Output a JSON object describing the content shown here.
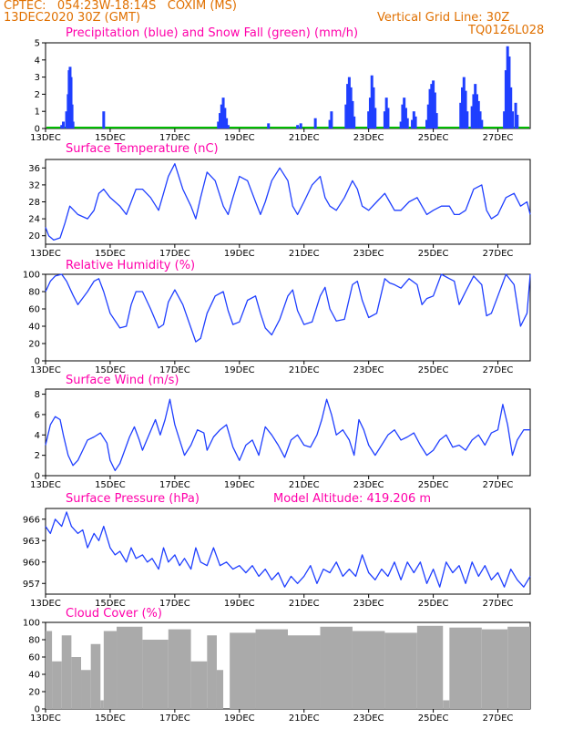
{
  "header": {
    "left1": "CPTEC:   054:23W-18:14S   COXIM (MS)",
    "left2": "13DEC2020 30Z (GMT)",
    "right1": "Vertical Grid Line: 30Z",
    "right2": "TQ0126L028"
  },
  "colors": {
    "title": "#ff00aa",
    "header": "#e07000",
    "line": "#1f3fff",
    "precip": "#1f3fff",
    "snow": "#00bb00",
    "cloud": "#aaaaaa"
  },
  "x_axis": {
    "start": "13DEC 00Z",
    "end": "28DEC 00Z",
    "unit": "days since 13DEC",
    "tick_labels": [
      "13DEC",
      "15DEC",
      "17DEC",
      "19DEC",
      "21DEC",
      "23DEC",
      "25DEC",
      "27DEC"
    ],
    "tick_positions": [
      0,
      2,
      4,
      6,
      8,
      10,
      12,
      14
    ]
  },
  "chart_data": [
    {
      "id": "precip",
      "type": "bar",
      "title": "Precipitation (blue) and Snow Fall (green) (mm/h)",
      "ylim": [
        0,
        5
      ],
      "yticks": [
        0,
        1,
        2,
        3,
        4,
        5
      ],
      "series": [
        {
          "name": "Precipitation",
          "points": [
            [
              0.5,
              0.2
            ],
            [
              0.55,
              0.4
            ],
            [
              0.65,
              1.0
            ],
            [
              0.7,
              2.0
            ],
            [
              0.73,
              3.4
            ],
            [
              0.76,
              3.6
            ],
            [
              0.79,
              3.0
            ],
            [
              0.82,
              1.4
            ],
            [
              0.85,
              0.4
            ],
            [
              1.8,
              1.0
            ],
            [
              5.35,
              0.4
            ],
            [
              5.4,
              0.9
            ],
            [
              5.45,
              1.4
            ],
            [
              5.5,
              1.8
            ],
            [
              5.55,
              1.2
            ],
            [
              5.6,
              0.6
            ],
            [
              5.65,
              0.2
            ],
            [
              6.9,
              0.3
            ],
            [
              7.8,
              0.2
            ],
            [
              7.9,
              0.3
            ],
            [
              8.35,
              0.6
            ],
            [
              8.8,
              0.5
            ],
            [
              8.85,
              1.0
            ],
            [
              9.3,
              1.4
            ],
            [
              9.35,
              2.6
            ],
            [
              9.4,
              3.0
            ],
            [
              9.45,
              2.4
            ],
            [
              9.5,
              1.6
            ],
            [
              9.55,
              0.7
            ],
            [
              10.0,
              1.0
            ],
            [
              10.05,
              1.8
            ],
            [
              10.1,
              3.1
            ],
            [
              10.15,
              2.4
            ],
            [
              10.2,
              1.2
            ],
            [
              10.5,
              1.0
            ],
            [
              10.55,
              1.8
            ],
            [
              10.6,
              1.2
            ],
            [
              11.0,
              0.4
            ],
            [
              11.05,
              1.4
            ],
            [
              11.1,
              1.8
            ],
            [
              11.15,
              1.2
            ],
            [
              11.2,
              0.6
            ],
            [
              11.35,
              0.5
            ],
            [
              11.4,
              1.0
            ],
            [
              11.45,
              0.7
            ],
            [
              11.8,
              0.5
            ],
            [
              11.85,
              1.4
            ],
            [
              11.9,
              2.3
            ],
            [
              11.95,
              2.6
            ],
            [
              12.0,
              2.8
            ],
            [
              12.05,
              2.1
            ],
            [
              12.1,
              0.9
            ],
            [
              12.85,
              1.5
            ],
            [
              12.9,
              2.4
            ],
            [
              12.95,
              3.0
            ],
            [
              13.0,
              2.2
            ],
            [
              13.05,
              1.0
            ],
            [
              13.2,
              1.3
            ],
            [
              13.25,
              2.0
            ],
            [
              13.3,
              2.6
            ],
            [
              13.35,
              2.0
            ],
            [
              13.4,
              1.6
            ],
            [
              13.45,
              1.0
            ],
            [
              13.5,
              0.5
            ],
            [
              14.2,
              1.0
            ],
            [
              14.25,
              3.4
            ],
            [
              14.3,
              4.8
            ],
            [
              14.35,
              4.2
            ],
            [
              14.4,
              2.4
            ],
            [
              14.45,
              1.0
            ],
            [
              14.55,
              1.5
            ],
            [
              14.6,
              0.8
            ]
          ]
        },
        {
          "name": "Snow Fall",
          "points": []
        }
      ]
    },
    {
      "id": "temp",
      "type": "line",
      "title": "Surface Temperature (nC)",
      "ylim": [
        18,
        38
      ],
      "yticks": [
        20,
        24,
        28,
        32,
        36
      ],
      "x": [
        0,
        0.1,
        0.25,
        0.45,
        0.6,
        0.75,
        1.0,
        1.3,
        1.5,
        1.65,
        1.8,
        2.0,
        2.3,
        2.5,
        2.65,
        2.8,
        3.0,
        3.25,
        3.5,
        3.65,
        3.8,
        4.0,
        4.25,
        4.5,
        4.65,
        4.8,
        5.0,
        5.25,
        5.5,
        5.65,
        5.8,
        6.0,
        6.25,
        6.5,
        6.65,
        6.8,
        7.0,
        7.25,
        7.5,
        7.65,
        7.8,
        8.0,
        8.25,
        8.5,
        8.65,
        8.8,
        9.0,
        9.25,
        9.5,
        9.65,
        9.8,
        10.0,
        10.25,
        10.5,
        10.65,
        10.8,
        11.0,
        11.25,
        11.5,
        11.65,
        11.8,
        12.0,
        12.25,
        12.5,
        12.65,
        12.8,
        13.0,
        13.25,
        13.5,
        13.65,
        13.8,
        14.0,
        14.25,
        14.5,
        14.7,
        14.9,
        15.0
      ],
      "y": [
        22,
        20,
        19,
        19.5,
        23,
        27,
        25,
        24,
        26,
        30,
        31,
        29,
        27,
        25,
        28,
        31,
        31,
        29,
        26,
        30,
        34,
        37,
        31,
        27,
        24,
        29,
        35,
        33,
        27,
        25,
        29,
        34,
        33,
        28,
        25,
        28,
        33,
        36,
        33,
        27,
        25,
        28,
        32,
        34,
        29,
        27,
        26,
        29,
        33,
        31,
        27,
        26,
        28,
        30,
        28,
        26,
        26,
        28,
        29,
        27,
        25,
        26,
        27,
        27,
        25,
        25,
        26,
        31,
        32,
        26,
        24,
        25,
        29,
        30,
        27,
        28,
        25
      ]
    },
    {
      "id": "rh",
      "type": "line",
      "title": "Relative Humidity (%)",
      "ylim": [
        0,
        100
      ],
      "yticks": [
        0,
        20,
        40,
        60,
        80,
        100
      ],
      "x": [
        0,
        0.15,
        0.3,
        0.5,
        0.65,
        0.85,
        1.0,
        1.3,
        1.5,
        1.65,
        1.8,
        2.0,
        2.3,
        2.5,
        2.65,
        2.8,
        3.0,
        3.25,
        3.5,
        3.65,
        3.8,
        4.0,
        4.25,
        4.5,
        4.65,
        4.8,
        5.0,
        5.25,
        5.5,
        5.65,
        5.8,
        6.0,
        6.25,
        6.5,
        6.65,
        6.8,
        7.0,
        7.25,
        7.5,
        7.65,
        7.8,
        8.0,
        8.25,
        8.5,
        8.65,
        8.8,
        9.0,
        9.25,
        9.5,
        9.65,
        9.8,
        10.0,
        10.25,
        10.5,
        10.65,
        10.8,
        11.0,
        11.25,
        11.5,
        11.65,
        11.8,
        12.0,
        12.25,
        12.5,
        12.65,
        12.8,
        13.0,
        13.25,
        13.5,
        13.65,
        13.8,
        14.0,
        14.25,
        14.5,
        14.7,
        14.9,
        15.0
      ],
      "y": [
        80,
        92,
        98,
        100,
        92,
        76,
        65,
        80,
        92,
        95,
        80,
        55,
        38,
        40,
        65,
        80,
        80,
        60,
        38,
        42,
        68,
        82,
        65,
        38,
        22,
        26,
        55,
        75,
        80,
        58,
        42,
        45,
        70,
        75,
        55,
        38,
        30,
        48,
        75,
        82,
        58,
        42,
        45,
        75,
        85,
        60,
        46,
        48,
        88,
        92,
        70,
        50,
        55,
        95,
        90,
        88,
        84,
        95,
        88,
        65,
        72,
        75,
        100,
        95,
        92,
        65,
        80,
        98,
        88,
        52,
        55,
        75,
        100,
        88,
        40,
        55,
        100
      ]
    },
    {
      "id": "wind",
      "type": "line",
      "title": "Surface Wind (m/s)",
      "ylim": [
        0,
        8.5
      ],
      "yticks": [
        0,
        2,
        4,
        6,
        8
      ],
      "x": [
        0,
        0.15,
        0.3,
        0.45,
        0.55,
        0.7,
        0.85,
        1.0,
        1.15,
        1.3,
        1.5,
        1.7,
        1.9,
        2.0,
        2.15,
        2.3,
        2.45,
        2.6,
        2.75,
        2.9,
        3.0,
        3.2,
        3.4,
        3.55,
        3.7,
        3.85,
        4.0,
        4.15,
        4.3,
        4.5,
        4.7,
        4.9,
        5.0,
        5.2,
        5.4,
        5.6,
        5.8,
        6.0,
        6.2,
        6.4,
        6.6,
        6.8,
        7.0,
        7.2,
        7.4,
        7.6,
        7.8,
        8.0,
        8.2,
        8.4,
        8.55,
        8.7,
        8.85,
        9.0,
        9.2,
        9.4,
        9.55,
        9.7,
        9.85,
        10.0,
        10.2,
        10.4,
        10.6,
        10.8,
        11.0,
        11.2,
        11.4,
        11.6,
        11.8,
        12.0,
        12.2,
        12.4,
        12.6,
        12.8,
        13.0,
        13.2,
        13.4,
        13.6,
        13.8,
        14.0,
        14.15,
        14.3,
        14.45,
        14.6,
        14.8,
        15.0
      ],
      "y": [
        3,
        5,
        5.8,
        5.5,
        4,
        2,
        1,
        1.5,
        2.5,
        3.5,
        3.8,
        4.2,
        3.2,
        1.5,
        0.5,
        1.2,
        2.5,
        3.8,
        4.8,
        3.5,
        2.5,
        4,
        5.5,
        4,
        5.5,
        7.5,
        5,
        3.5,
        2,
        3,
        4.5,
        4.2,
        2.5,
        3.8,
        4.5,
        5,
        2.8,
        1.5,
        3,
        3.5,
        2,
        4.8,
        4,
        3,
        1.8,
        3.5,
        4,
        3,
        2.8,
        4,
        5.5,
        7.5,
        6,
        4,
        4.5,
        3.5,
        2,
        5.5,
        4.5,
        3,
        2,
        3,
        4,
        4.5,
        3.5,
        3.8,
        4.2,
        3,
        2,
        2.5,
        3.5,
        4,
        2.8,
        3,
        2.5,
        3.5,
        4,
        3,
        4.2,
        4.5,
        7,
        5,
        2,
        3.5,
        4.5,
        4.5
      ]
    },
    {
      "id": "pressure",
      "type": "line",
      "title": "Surface Pressure (hPa)",
      "ylim": [
        955.5,
        967.5
      ],
      "yticks": [
        957,
        960,
        963,
        966
      ],
      "x": [
        0,
        0.15,
        0.3,
        0.5,
        0.65,
        0.8,
        1.0,
        1.15,
        1.3,
        1.5,
        1.65,
        1.8,
        2.0,
        2.15,
        2.3,
        2.5,
        2.65,
        2.8,
        3.0,
        3.15,
        3.3,
        3.5,
        3.65,
        3.8,
        4.0,
        4.15,
        4.3,
        4.5,
        4.65,
        4.8,
        5.0,
        5.2,
        5.4,
        5.6,
        5.8,
        6.0,
        6.2,
        6.4,
        6.6,
        6.8,
        7.0,
        7.2,
        7.4,
        7.6,
        7.8,
        8.0,
        8.2,
        8.4,
        8.6,
        8.8,
        9.0,
        9.2,
        9.4,
        9.6,
        9.8,
        10.0,
        10.2,
        10.4,
        10.6,
        10.8,
        11.0,
        11.2,
        11.4,
        11.6,
        11.8,
        12.0,
        12.2,
        12.4,
        12.6,
        12.8,
        13.0,
        13.2,
        13.4,
        13.6,
        13.8,
        14.0,
        14.2,
        14.4,
        14.6,
        14.8,
        15.0
      ],
      "y": [
        965,
        964,
        966,
        965,
        967,
        965,
        964,
        964.5,
        962,
        964,
        963,
        965,
        962,
        961,
        961.5,
        960,
        962,
        960.5,
        961,
        960,
        960.5,
        959,
        962,
        960,
        961,
        959.5,
        960.5,
        959,
        962,
        960,
        959.5,
        962,
        959.5,
        960,
        959,
        959.5,
        958.5,
        959.5,
        958,
        959,
        957.5,
        958.5,
        956.5,
        958,
        957,
        958,
        959.5,
        957,
        959,
        958.5,
        960,
        958,
        959,
        958,
        961,
        958.5,
        957.5,
        959,
        958,
        960,
        957.5,
        960,
        958.5,
        960,
        957,
        959,
        956.5,
        960,
        958.5,
        959.5,
        957,
        960,
        958,
        959.5,
        957.5,
        958.5,
        956.5,
        959,
        957.5,
        956.5,
        958
      ]
    },
    {
      "id": "cloud",
      "type": "bar",
      "title": "Cloud Cover (%)",
      "ylim": [
        0,
        100
      ],
      "yticks": [
        0,
        20,
        40,
        60,
        80,
        100
      ],
      "values_by_segment": [
        [
          0.0,
          0.2,
          90
        ],
        [
          0.2,
          0.5,
          55
        ],
        [
          0.5,
          0.8,
          85
        ],
        [
          0.8,
          1.1,
          60
        ],
        [
          1.1,
          1.4,
          45
        ],
        [
          1.4,
          1.7,
          75
        ],
        [
          1.7,
          1.8,
          10
        ],
        [
          1.8,
          2.2,
          90
        ],
        [
          2.2,
          3.0,
          95
        ],
        [
          3.0,
          3.8,
          80
        ],
        [
          3.8,
          4.5,
          92
        ],
        [
          4.5,
          5.0,
          55
        ],
        [
          5.0,
          5.3,
          85
        ],
        [
          5.3,
          5.5,
          45
        ],
        [
          5.5,
          5.7,
          0
        ],
        [
          5.7,
          6.5,
          88
        ],
        [
          6.5,
          7.5,
          92
        ],
        [
          7.5,
          8.5,
          85
        ],
        [
          8.5,
          9.5,
          95
        ],
        [
          9.5,
          10.5,
          90
        ],
        [
          10.5,
          11.5,
          88
        ],
        [
          11.5,
          12.3,
          96
        ],
        [
          12.3,
          12.5,
          10
        ],
        [
          12.5,
          13.5,
          94
        ],
        [
          13.5,
          14.3,
          92
        ],
        [
          14.3,
          15.0,
          95
        ]
      ]
    }
  ],
  "panel2_extra": "Model Altitude: 419.206 m"
}
